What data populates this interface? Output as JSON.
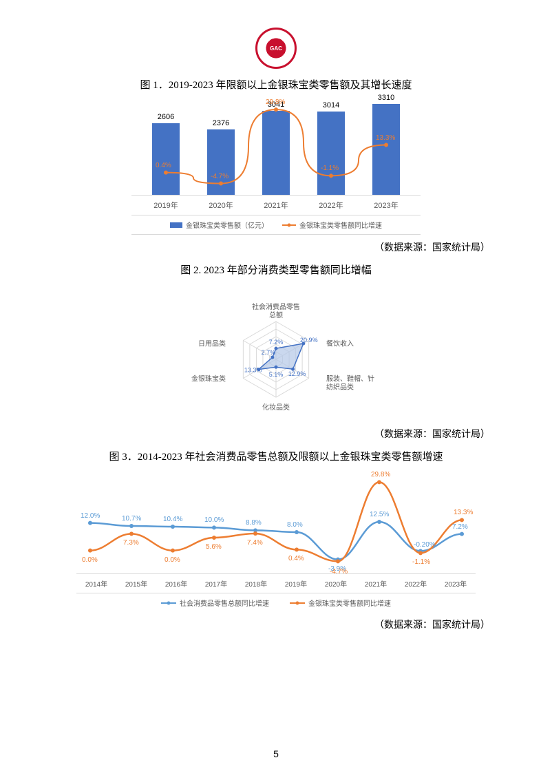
{
  "logo_text": "GAC",
  "page_number": "5",
  "chart1": {
    "title": "图 1．2019-2023 年限额以上金银珠宝类零售额及其增长速度",
    "source": "（数据来源：国家统计局）",
    "categories": [
      "2019年",
      "2020年",
      "2021年",
      "2022年",
      "2023年"
    ],
    "bar_values": [
      2606,
      2376,
      3041,
      3014,
      3310
    ],
    "line_values": [
      0.4,
      -4.7,
      29.8,
      -1.1,
      13.3
    ],
    "line_labels": [
      "0.4%",
      "-4.7%",
      "29.8%",
      "-1.1%",
      "13.3%"
    ],
    "bar_color": "#4472c4",
    "line_color": "#ed7d31",
    "legend_bar": "金银珠宝类零售额（亿元）",
    "legend_line": "金银珠宝类零售额同比增速",
    "max_bar": 3500
  },
  "chart2": {
    "title": "图 2. 2023 年部分消费类型零售额同比增幅",
    "source": "（数据来源：国家统计局）",
    "axes": [
      "社会消费品零售总额",
      "餐饮收入",
      "服装、鞋帽、针纺织品类",
      "化妆品类",
      "金银珠宝类",
      "日用品类"
    ],
    "values": [
      7.2,
      20.9,
      12.9,
      5.1,
      13.3,
      2.7
    ],
    "value_labels": [
      "7.2%",
      "20.9%",
      "12.9%",
      "5.1%",
      "13.3%",
      "2.7%"
    ],
    "max_value": 25,
    "fill_color": "#b4c7e7",
    "stroke_color": "#4472c4",
    "grid_color": "#d9d9d9",
    "label_color": "#595959",
    "value_color": "#4472c4"
  },
  "chart3": {
    "title": "图 3．2014-2023 年社会消费品零售总额及限额以上金银珠宝类零售额增速",
    "source": "（数据来源：国家统计局）",
    "categories": [
      "2014年",
      "2015年",
      "2016年",
      "2017年",
      "2018年",
      "2019年",
      "2020年",
      "2021年",
      "2022年",
      "2023年"
    ],
    "series1_values": [
      12.0,
      10.7,
      10.4,
      10.0,
      8.8,
      8.0,
      -3.9,
      12.5,
      -0.2,
      7.2
    ],
    "series1_labels": [
      "12.0%",
      "10.7%",
      "10.4%",
      "10.0%",
      "8.8%",
      "8.0%",
      "-3.9%",
      "12.5%",
      "-0.20%",
      "7.2%"
    ],
    "series2_values": [
      0.0,
      7.3,
      0.0,
      5.6,
      7.4,
      0.4,
      -4.7,
      29.8,
      -1.1,
      13.3
    ],
    "series2_labels": [
      "0.0%",
      "7.3%",
      "0.0%",
      "5.6%",
      "7.4%",
      "0.4%",
      "-4.7%",
      "29.8%",
      "-1.1%",
      "13.3%"
    ],
    "series1_color": "#5b9bd5",
    "series2_color": "#ed7d31",
    "legend1": "社会消费品零售总额同比增速",
    "legend2": "金银珠宝类零售额同比增速",
    "y_min": -10,
    "y_max": 35
  }
}
